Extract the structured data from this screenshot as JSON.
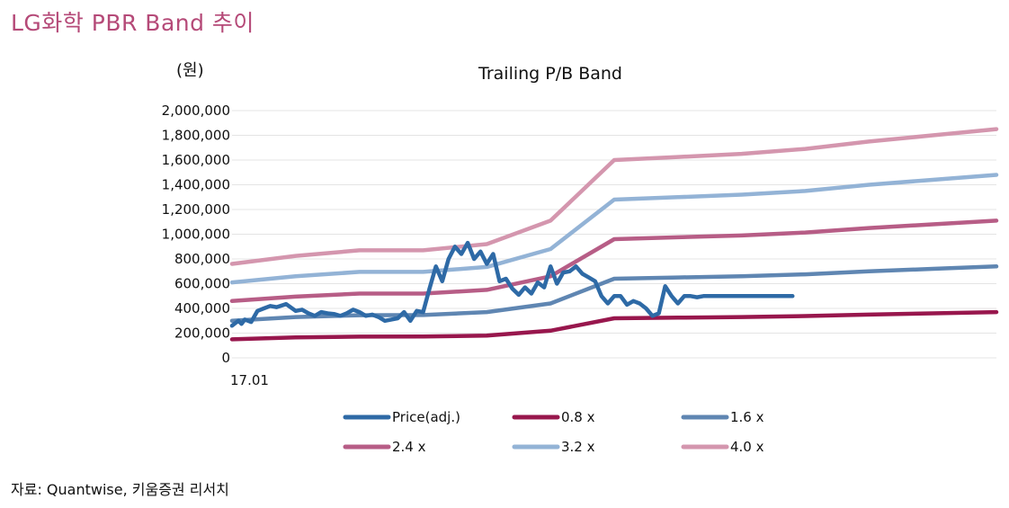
{
  "page_title": "LG화학  PBR Band  추이",
  "unit_label": "(원)",
  "source_note": "자료: Quantwise, 키움증권 리서치",
  "chart_data": {
    "type": "line",
    "title": "Trailing P/B Band",
    "xlabel": "",
    "ylabel": "(원)",
    "ylim": [
      0,
      2000000
    ],
    "y_ticks": [
      0,
      200000,
      400000,
      600000,
      800000,
      1000000,
      1200000,
      1400000,
      1600000,
      1800000,
      2000000
    ],
    "y_tick_labels": [
      "0",
      "200,000",
      "400,000",
      "600,000",
      "800,000",
      "1,000,000",
      "1,200,000",
      "1,400,000",
      "1,600,000",
      "1,800,000",
      "2,000,000"
    ],
    "x_tick_labels": [
      "17.01"
    ],
    "grid": true,
    "legend_position": "bottom",
    "series": [
      {
        "name": "Price(adj.)",
        "color": "#2e6aa6",
        "x": [
          0.0,
          0.05,
          0.1,
          0.15,
          0.2,
          0.3,
          0.4,
          0.5,
          0.6,
          0.7,
          0.85,
          1.0,
          1.1,
          1.2,
          1.3,
          1.4,
          1.5,
          1.6,
          1.7,
          1.8,
          1.9,
          2.0,
          2.1,
          2.2,
          2.3,
          2.4,
          2.5,
          2.6,
          2.7,
          2.8,
          2.9,
          3.0,
          3.1,
          3.2,
          3.3,
          3.4,
          3.5,
          3.6,
          3.7,
          3.8,
          3.9,
          4.0,
          4.1,
          4.2,
          4.3,
          4.4,
          4.5,
          4.6,
          4.7,
          4.8,
          4.9,
          5.0,
          5.1,
          5.2,
          5.3,
          5.4,
          5.5,
          5.6,
          5.7,
          5.8,
          5.9,
          6.0,
          6.1,
          6.2,
          6.3,
          6.4,
          6.5,
          6.6,
          6.7,
          6.8,
          6.9,
          7.0,
          7.1,
          7.2,
          7.3,
          7.4,
          7.5,
          7.6,
          7.7,
          7.8,
          7.9,
          8.0,
          8.1,
          8.2,
          8.3,
          8.4,
          8.5,
          8.6,
          8.7,
          8.8
        ],
        "values": [
          260000,
          280000,
          300000,
          275000,
          310000,
          290000,
          380000,
          400000,
          420000,
          410000,
          435000,
          380000,
          390000,
          360000,
          340000,
          370000,
          360000,
          355000,
          340000,
          360000,
          390000,
          370000,
          340000,
          350000,
          330000,
          300000,
          310000,
          320000,
          370000,
          300000,
          380000,
          370000,
          560000,
          740000,
          620000,
          800000,
          900000,
          840000,
          930000,
          800000,
          860000,
          760000,
          840000,
          620000,
          640000,
          560000,
          510000,
          570000,
          520000,
          610000,
          570000,
          740000,
          600000,
          690000,
          700000,
          740000,
          680000,
          650000,
          620000,
          500000,
          440000,
          500000,
          500000,
          430000,
          460000,
          440000,
          400000,
          340000,
          360000,
          580000,
          500000,
          440000,
          500000,
          500000,
          490000,
          500000,
          500000,
          500000,
          500000,
          500000,
          500000,
          500000,
          500000,
          500000,
          500000,
          500000,
          500000,
          500000,
          500000,
          500000
        ]
      },
      {
        "name": "0.8 x",
        "color": "#98174d",
        "x": [
          0,
          1,
          2,
          3,
          4,
          5,
          6,
          7,
          8,
          9,
          10,
          11,
          12
        ],
        "values": [
          150000,
          165000,
          172000,
          173000,
          180000,
          220000,
          320000,
          325000,
          330000,
          338000,
          350000,
          360000,
          370000
        ]
      },
      {
        "name": "1.6 x",
        "color": "#5f86b2",
        "x": [
          0,
          1,
          2,
          3,
          4,
          5,
          6,
          7,
          8,
          9,
          10,
          11,
          12
        ],
        "values": [
          300000,
          330000,
          345000,
          346000,
          370000,
          440000,
          640000,
          650000,
          660000,
          676000,
          700000,
          720000,
          740000
        ]
      },
      {
        "name": "2.4 x",
        "color": "#b75d86",
        "x": [
          0,
          1,
          2,
          3,
          4,
          5,
          6,
          7,
          8,
          9,
          10,
          11,
          12
        ],
        "values": [
          460000,
          495000,
          520000,
          520000,
          550000,
          660000,
          960000,
          975000,
          990000,
          1014000,
          1050000,
          1080000,
          1110000
        ]
      },
      {
        "name": "3.2 x",
        "color": "#93b3d6",
        "x": [
          0,
          1,
          2,
          3,
          4,
          5,
          6,
          7,
          8,
          9,
          10,
          11,
          12
        ],
        "values": [
          610000,
          660000,
          695000,
          695000,
          735000,
          880000,
          1280000,
          1300000,
          1320000,
          1350000,
          1400000,
          1440000,
          1480000
        ]
      },
      {
        "name": "4.0 x",
        "color": "#d496ae",
        "x": [
          0,
          1,
          2,
          3,
          4,
          5,
          6,
          7,
          8,
          9,
          10,
          11,
          12
        ],
        "values": [
          760000,
          825000,
          870000,
          870000,
          920000,
          1110000,
          1600000,
          1625000,
          1650000,
          1690000,
          1750000,
          1800000,
          1850000
        ]
      }
    ]
  }
}
